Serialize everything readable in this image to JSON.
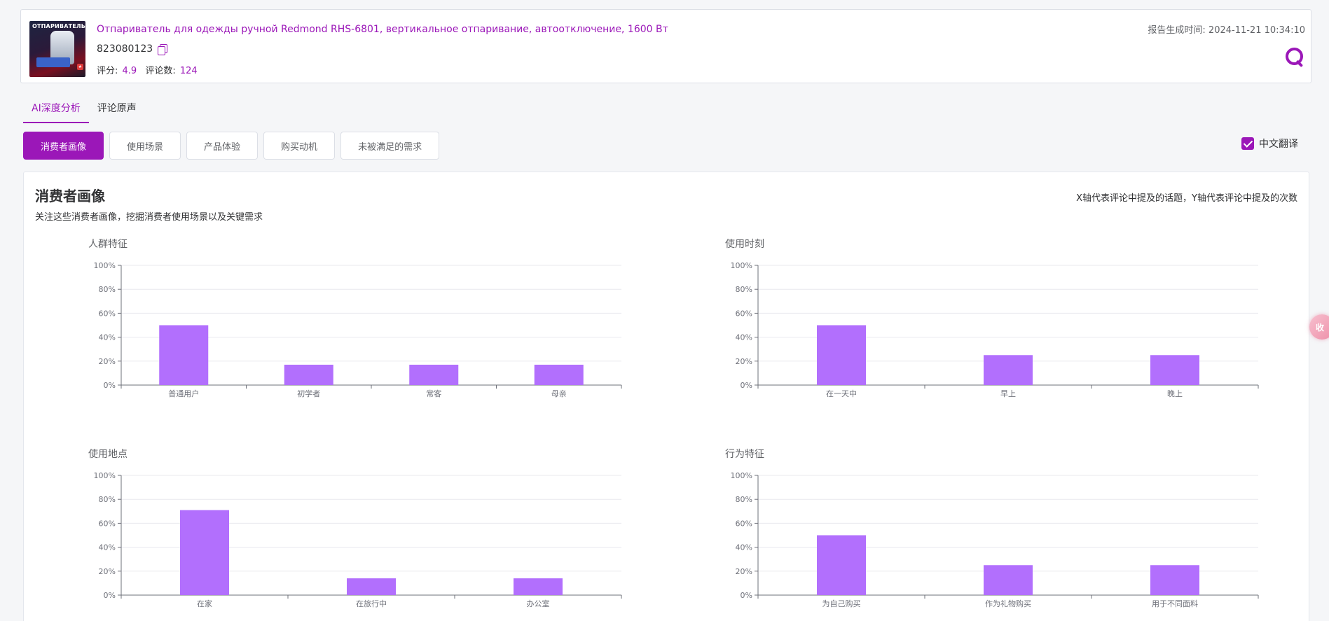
{
  "product": {
    "title": "Отпариватель для одежды ручной Redmond RHS-6801, вертикальное отпаривание, автоотключение, 1600 Вт",
    "id": "823080123",
    "rating_label": "评分:",
    "rating": "4.9",
    "reviews_label": "评论数:",
    "reviews": "124",
    "image_text": "ОТПАРИВАТЕЛЬ"
  },
  "report": {
    "label": "报告生成时间:",
    "time": "2024-11-21 10:34:10"
  },
  "tabs": [
    {
      "label": "AI深度分析",
      "active": true
    },
    {
      "label": "评论原声",
      "active": false
    }
  ],
  "segments": [
    {
      "label": "消费者画像",
      "active": true
    },
    {
      "label": "使用场景",
      "active": false
    },
    {
      "label": "产品体验",
      "active": false
    },
    {
      "label": "购买动机",
      "active": false
    },
    {
      "label": "未被满足的需求",
      "active": false
    }
  ],
  "translate": {
    "label": "中文翻译",
    "checked": true
  },
  "panel": {
    "title": "消费者画像",
    "subtitle": "关注这些消费者画像，挖掘消费者使用场景以及关键需求",
    "note": "X轴代表评论中提及的话题，Y轴代表评论中提及的次数"
  },
  "side_tab": {
    "label": "收"
  },
  "colors": {
    "accent": "#9b17b8",
    "bar": "#b26ffd"
  },
  "chart_data": [
    {
      "type": "bar",
      "title": "人群特征",
      "categories": [
        "普通用户",
        "初学者",
        "常客",
        "母亲"
      ],
      "values": [
        0.5,
        0.17,
        0.17,
        0.17
      ],
      "ylim": [
        0,
        1
      ],
      "yticks": [
        "0%",
        "20%",
        "40%",
        "60%",
        "80%",
        "100%"
      ],
      "grid": true
    },
    {
      "type": "bar",
      "title": "使用时刻",
      "categories": [
        "在一天中",
        "早上",
        "晚上"
      ],
      "values": [
        0.5,
        0.25,
        0.25
      ],
      "ylim": [
        0,
        1
      ],
      "yticks": [
        "0%",
        "20%",
        "40%",
        "60%",
        "80%",
        "100%"
      ],
      "grid": true
    },
    {
      "type": "bar",
      "title": "使用地点",
      "categories": [
        "在家",
        "在旅行中",
        "办公室"
      ],
      "values": [
        0.71,
        0.14,
        0.14
      ],
      "ylim": [
        0,
        1
      ],
      "yticks": [
        "0%",
        "20%",
        "40%",
        "60%",
        "80%",
        "100%"
      ],
      "grid": true
    },
    {
      "type": "bar",
      "title": "行为特征",
      "categories": [
        "为自己购买",
        "作为礼物购买",
        "用于不同面料"
      ],
      "values": [
        0.5,
        0.25,
        0.25
      ],
      "ylim": [
        0,
        1
      ],
      "yticks": [
        "0%",
        "20%",
        "40%",
        "60%",
        "80%",
        "100%"
      ],
      "grid": true
    }
  ]
}
